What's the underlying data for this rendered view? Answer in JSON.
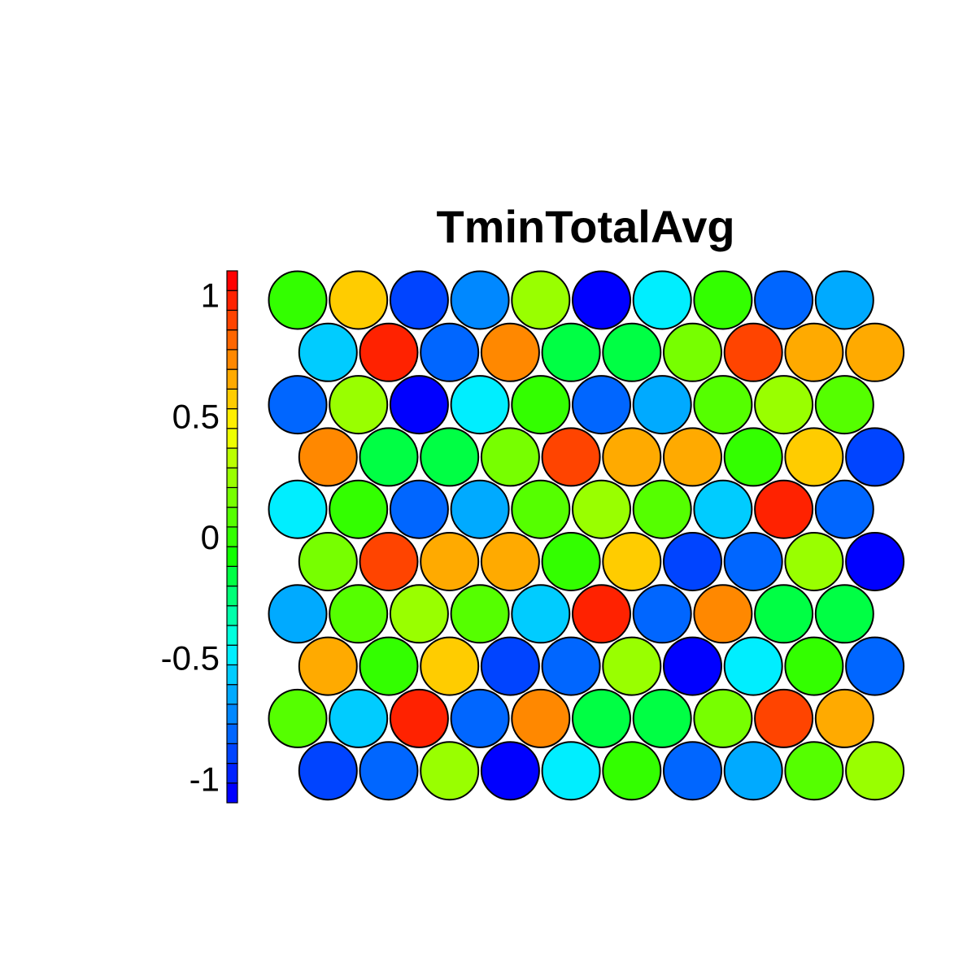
{
  "chart_data": {
    "type": "heatmap",
    "subtype": "som-hexagonal-map",
    "title": "TminTotalAvg",
    "grid": {
      "cols": 10,
      "rows": 10,
      "topology": "hexagonal"
    },
    "values": [
      [
        -0.02,
        0.53,
        -0.9,
        -0.73,
        0.27,
        -1.05,
        -0.48,
        -0.02,
        -0.78,
        -0.62
      ],
      [
        -0.53,
        0.95,
        -0.78,
        0.72,
        -0.15,
        -0.15,
        0.17,
        0.9,
        0.63,
        0.63
      ],
      [
        -0.78,
        0.27,
        -1.05,
        -0.48,
        -0.02,
        -0.78,
        -0.62,
        0.12,
        0.27,
        0.12
      ],
      [
        0.72,
        -0.15,
        -0.15,
        0.17,
        0.9,
        0.63,
        0.63,
        -0.02,
        0.53,
        -0.9
      ],
      [
        -0.48,
        -0.02,
        -0.78,
        -0.62,
        0.12,
        0.27,
        0.12,
        -0.53,
        0.95,
        -0.78
      ],
      [
        0.17,
        0.9,
        0.63,
        0.63,
        -0.02,
        0.53,
        -0.9,
        -0.78,
        0.27,
        -1.05
      ],
      [
        -0.62,
        0.12,
        0.27,
        0.12,
        -0.53,
        0.95,
        -0.78,
        0.72,
        -0.15,
        -0.15
      ],
      [
        0.63,
        -0.02,
        0.53,
        -0.9,
        -0.78,
        0.27,
        -1.05,
        -0.48,
        -0.02,
        -0.78
      ],
      [
        0.12,
        -0.53,
        0.95,
        -0.78,
        0.72,
        -0.15,
        -0.15,
        0.17,
        0.9,
        0.63
      ],
      [
        -0.9,
        -0.78,
        0.27,
        -1.05,
        -0.48,
        -0.02,
        -0.78,
        -0.62,
        0.12,
        0.27
      ]
    ],
    "colorbar": {
      "min": -1.1,
      "max": 1.1,
      "ticks": [
        {
          "value": 1,
          "label": "1"
        },
        {
          "value": 0.5,
          "label": "0.5"
        },
        {
          "value": 0,
          "label": "0"
        },
        {
          "value": -0.5,
          "label": "-0.5"
        },
        {
          "value": -1,
          "label": "-1"
        }
      ],
      "palette": [
        "#0000ff",
        "#0022ff",
        "#0044ff",
        "#0066ff",
        "#0088ff",
        "#00aaff",
        "#00ccff",
        "#00eeff",
        "#00ffdd",
        "#00ffaa",
        "#00ff77",
        "#00ff44",
        "#11ff00",
        "#33ff00",
        "#55ff00",
        "#77ff00",
        "#99ff00",
        "#bbff00",
        "#eeff00",
        "#ffee00",
        "#ffcc00",
        "#ffaa00",
        "#ff8800",
        "#ff6600",
        "#ff4400",
        "#ff2200",
        "#ff0000"
      ]
    }
  }
}
